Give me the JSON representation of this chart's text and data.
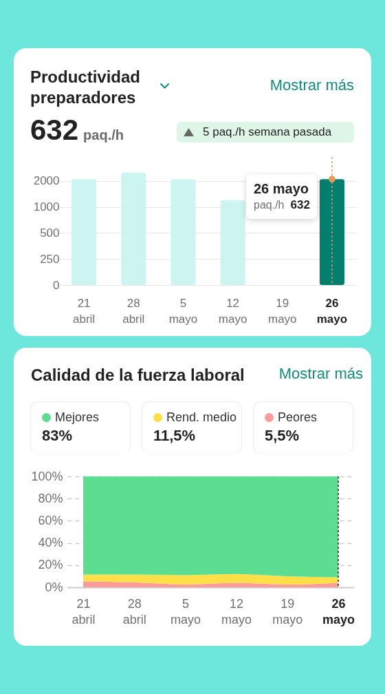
{
  "chart_data": [
    {
      "type": "bar",
      "title": "Productividad preparadores",
      "categories": [
        "21 abril",
        "28 abril",
        "5 mayo",
        "12 mayo",
        "19 mayo",
        "26 mayo"
      ],
      "series": [
        {
          "values": [
            2100,
            2500,
            2100,
            1200,
            null,
            2100
          ],
          "colors": [
            "#ccf5f2",
            "#ccf5f2",
            "#ccf5f2",
            "#ccf5f2",
            null,
            "#007f6f"
          ]
        },
        {
          "type": "scatter",
          "x": [
            "26 mayo"
          ],
          "values": [
            2100
          ],
          "color": "#dd9d58",
          "marker": "circle"
        }
      ],
      "log": true,
      "ylim": [
        0,
        3800
      ],
      "yticks": [
        0,
        250,
        500,
        1000,
        2000
      ],
      "grid": "y",
      "ref_lines": [
        {
          "axis": "x",
          "value": "26 mayo",
          "color": "#dd9d58",
          "line_style": "dotted"
        }
      ],
      "annotations": [
        "Mostrar más",
        "632",
        "paq./h",
        "5 paq./h semana pasada",
        "26 mayo",
        "paq./h",
        "632"
      ]
    },
    {
      "type": "area",
      "title": "Calidad de la fuerza laboral",
      "categories": [
        "21 abril",
        "28 abril",
        "5 mayo",
        "12 mayo",
        "19 mayo",
        "26 mayo"
      ],
      "stacked": true,
      "series": [
        {
          "name": "Peores",
          "color": "#ff9c99",
          "values": [
            5.5,
            4.5,
            2.5,
            4,
            2.5,
            4
          ]
        },
        {
          "name": "Rend. medio",
          "color": "#ffdf47",
          "values": [
            6,
            7,
            8.5,
            8,
            7.5,
            5
          ]
        },
        {
          "name": "Mejores",
          "color": "#5cdd92",
          "values": [
            88.5,
            88.5,
            89,
            88,
            90,
            91
          ]
        }
      ],
      "ylim": [
        0,
        100
      ],
      "yticks": [
        {
          "value": 0,
          "label": "0%"
        },
        {
          "value": 20,
          "label": "20%"
        },
        {
          "value": 40,
          "label": "40%"
        },
        {
          "value": 60,
          "label": "60%"
        },
        {
          "value": 80,
          "label": "80%"
        },
        {
          "value": 100,
          "label": "100%"
        }
      ],
      "grid": "y",
      "legend": "top",
      "ref_lines": [
        {
          "axis": "x",
          "value": "26 mayo",
          "color": "#222222",
          "line_style": "dotted"
        }
      ],
      "annotations": [
        "Mostrar más",
        "83%",
        "11,5%",
        "5,5%"
      ]
    }
  ]
}
